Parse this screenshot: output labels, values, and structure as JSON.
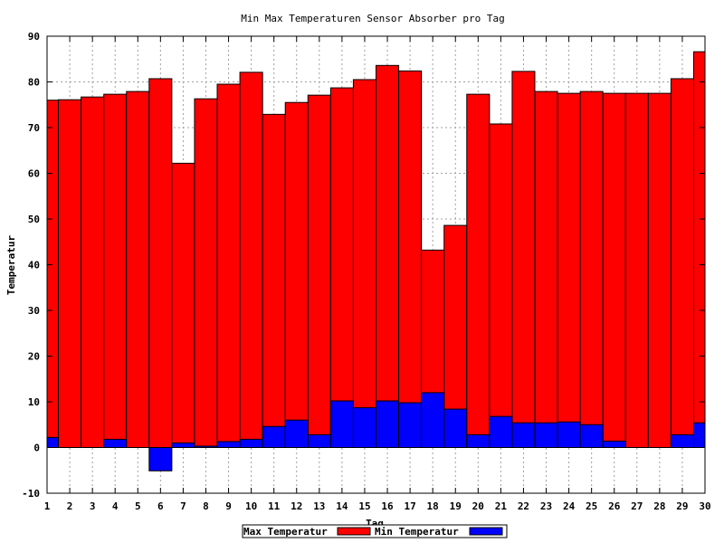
{
  "chart_data": {
    "type": "bar",
    "title": "Min Max Temperaturen Sensor Absorber pro Tag",
    "xlabel": "Tag",
    "ylabel": "Temperatur",
    "ylim": [
      -10,
      90
    ],
    "yticks": [
      "-10",
      "0",
      "10",
      "20",
      "30",
      "40",
      "50",
      "60",
      "70",
      "80",
      "90"
    ],
    "categories": [
      "1",
      "2",
      "3",
      "4",
      "5",
      "6",
      "7",
      "8",
      "9",
      "10",
      "11",
      "12",
      "13",
      "14",
      "15",
      "16",
      "17",
      "18",
      "19",
      "20",
      "21",
      "22",
      "23",
      "24",
      "25",
      "26",
      "27",
      "28",
      "29",
      "30"
    ],
    "grid": true,
    "legend_position": "bottom",
    "series": [
      {
        "name": "Max Temperatur",
        "color": "#ff0000",
        "values": [
          76.0,
          76.1,
          76.7,
          77.3,
          77.9,
          80.7,
          62.2,
          76.3,
          79.5,
          82.1,
          72.9,
          75.5,
          77.1,
          78.7,
          80.5,
          83.6,
          82.4,
          43.2,
          48.6,
          77.3,
          70.8,
          82.3,
          77.9,
          77.5,
          77.9,
          77.5,
          77.5,
          77.5,
          80.7,
          86.6
        ]
      },
      {
        "name": "Min Temperatur",
        "color": "#0000ff",
        "values": [
          2.2,
          0.0,
          0.0,
          1.8,
          0.0,
          -5.1,
          1.0,
          0.3,
          1.3,
          1.8,
          4.6,
          6.0,
          2.8,
          10.2,
          8.7,
          10.2,
          9.8,
          12.0,
          8.4,
          2.8,
          6.8,
          5.4,
          5.4,
          5.6,
          5.0,
          1.4,
          0.0,
          0.0,
          2.8,
          5.4
        ]
      }
    ]
  }
}
